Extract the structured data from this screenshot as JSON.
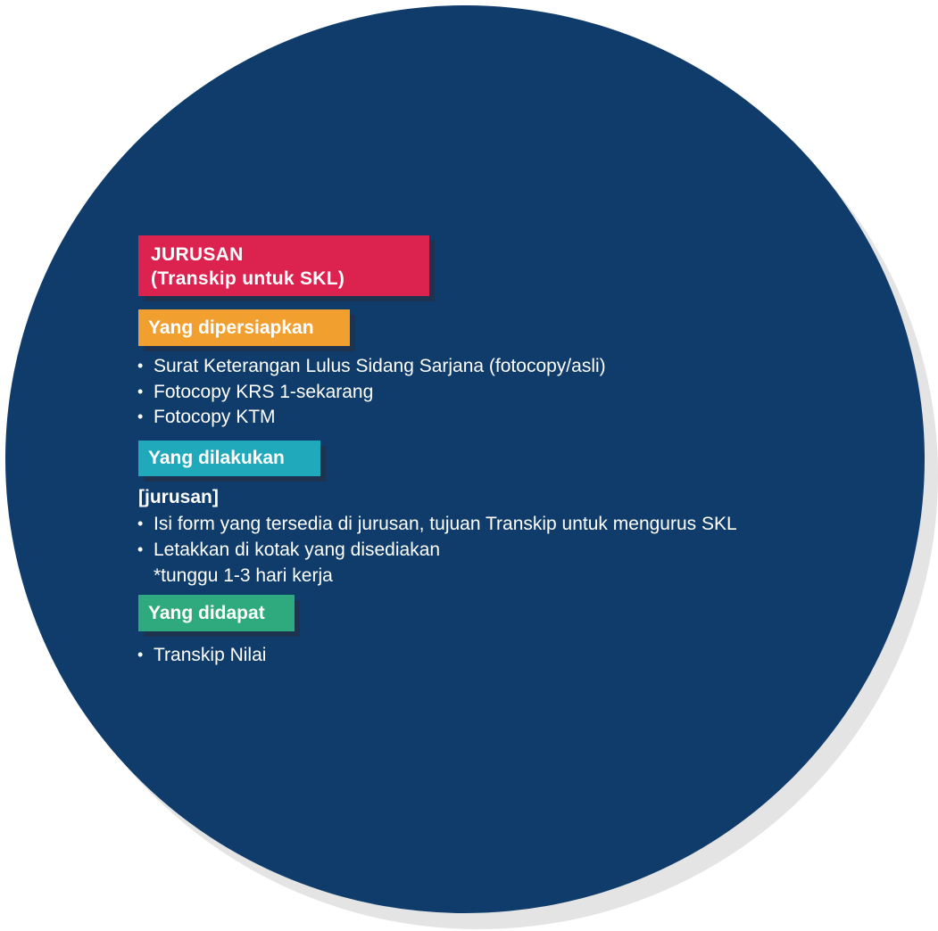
{
  "header": {
    "line1": "JURUSAN",
    "line2": "(Transkip untuk SKL)"
  },
  "sections": {
    "prepare": {
      "label": "Yang dipersiapkan",
      "items": [
        "Surat Keterangan Lulus Sidang Sarjana (fotocopy/asli)",
        "Fotocopy KRS 1-sekarang",
        "Fotocopy KTM"
      ]
    },
    "do": {
      "label": "Yang dilakukan",
      "subheading": "[jurusan]",
      "items": [
        "Isi form yang tersedia di jurusan, tujuan Transkip untuk mengurus SKL",
        "Letakkan di kotak yang disediakan"
      ],
      "note": "*tunggu 1-3 hari kerja"
    },
    "get": {
      "label": "Yang didapat",
      "items": [
        "Transkip Nilai"
      ]
    }
  },
  "bullet_char": "•",
  "colors": {
    "circle": "#0f3c6a",
    "title_tag": "#dc2350",
    "prepare_tag": "#f1a030",
    "do_tag": "#1fa9ba",
    "get_tag": "#2faa7e"
  }
}
